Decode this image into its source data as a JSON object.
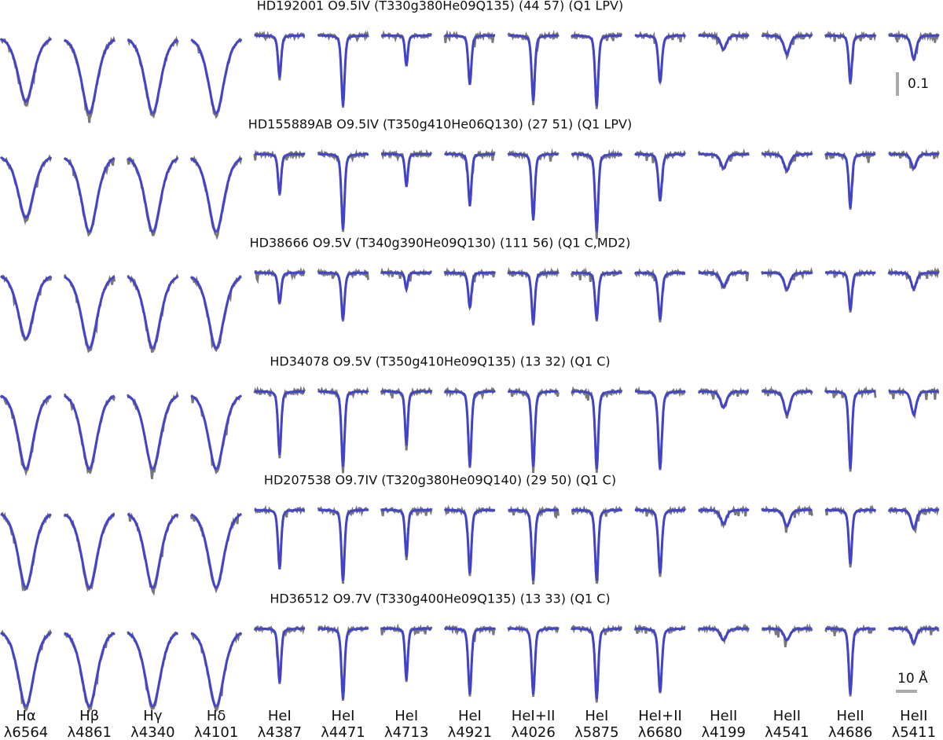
{
  "chart_data": {
    "type": "line-profiles",
    "flux_scale": 0.1,
    "wavelength_scale": {
      "value": 10,
      "label": "10 Å"
    },
    "columns": [
      {
        "line": "Hα",
        "wavelength": "λ6564",
        "width": 4
      },
      {
        "line": "Hβ",
        "wavelength": "λ4861",
        "width": 4
      },
      {
        "line": "Hγ",
        "wavelength": "λ4340",
        "width": 4
      },
      {
        "line": "Hδ",
        "wavelength": "λ4101",
        "width": 4
      },
      {
        "line": "HeI",
        "wavelength": "λ4387",
        "width": 0.8
      },
      {
        "line": "HeI",
        "wavelength": "λ4471",
        "width": 0.8
      },
      {
        "line": "HeI",
        "wavelength": "λ4713",
        "width": 0.7
      },
      {
        "line": "HeI",
        "wavelength": "λ4921",
        "width": 0.8
      },
      {
        "line": "HeI+II",
        "wavelength": "λ4026",
        "width": 0.8
      },
      {
        "line": "HeI",
        "wavelength": "λ5875",
        "width": 0.8
      },
      {
        "line": "HeI+II",
        "wavelength": "λ6680",
        "width": 0.9
      },
      {
        "line": "HeII",
        "wavelength": "λ4199",
        "width": 1.5
      },
      {
        "line": "HeII",
        "wavelength": "λ4541",
        "width": 1.5
      },
      {
        "line": "HeII",
        "wavelength": "λ4686",
        "width": 0.8
      },
      {
        "line": "HeII",
        "wavelength": "λ5411",
        "width": 1.3
      }
    ],
    "rows": [
      {
        "title": "HD192001 O9.5IV (T330g380He09Q135) (44 57) (Q1 LPV)",
        "depths": [
          0.28,
          0.33,
          0.33,
          0.33,
          0.18,
          0.3,
          0.13,
          0.21,
          0.28,
          0.3,
          0.2,
          0.06,
          0.08,
          0.2,
          0.1
        ]
      },
      {
        "title": "HD155889AB O9.5IV (T350g410He06Q130) (27 51) (Q1 LPV)",
        "depths": [
          0.27,
          0.33,
          0.33,
          0.33,
          0.17,
          0.32,
          0.14,
          0.22,
          0.28,
          0.33,
          0.2,
          0.06,
          0.07,
          0.23,
          0.06
        ]
      },
      {
        "title": "HD38666 O9.5V (T340g390He09Q130) (111 56) (Q1 C,MD2)",
        "depths": [
          0.28,
          0.32,
          0.32,
          0.32,
          0.13,
          0.2,
          0.07,
          0.15,
          0.22,
          0.2,
          0.2,
          0.06,
          0.07,
          0.16,
          0.07
        ]
      },
      {
        "title": "HD34078 O9.5V (T350g410He09Q135) (13 32) (Q1 C)",
        "depths": [
          0.33,
          0.33,
          0.33,
          0.33,
          0.27,
          0.32,
          0.23,
          0.32,
          0.32,
          0.33,
          0.33,
          0.07,
          0.1,
          0.33,
          0.1
        ]
      },
      {
        "title": "HD207538 O9.7IV (T320g380He09Q140) (29 50) (Q1 C)",
        "depths": [
          0.33,
          0.33,
          0.33,
          0.33,
          0.25,
          0.3,
          0.2,
          0.27,
          0.3,
          0.3,
          0.27,
          0.06,
          0.07,
          0.23,
          0.08
        ]
      },
      {
        "title": "HD36512 O9.7V (T330g400He09Q135) (13 33) (Q1 C)",
        "depths": [
          0.33,
          0.33,
          0.33,
          0.33,
          0.23,
          0.3,
          0.22,
          0.28,
          0.28,
          0.3,
          0.27,
          0.05,
          0.05,
          0.28,
          0.06
        ]
      }
    ],
    "observed_color": "#777777",
    "model_color": "#3a3ad6"
  }
}
